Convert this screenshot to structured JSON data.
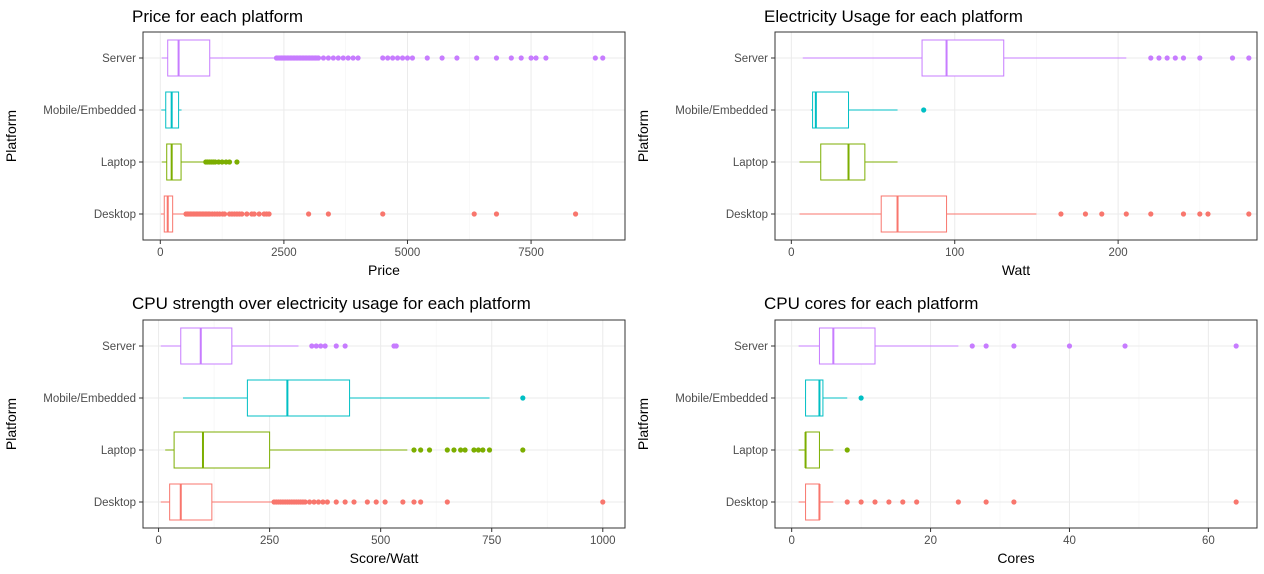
{
  "chart_data": [
    {
      "type": "boxplot",
      "orientation": "horizontal",
      "title": "Price for each platform",
      "xlabel": "Price",
      "ylabel": "Platform",
      "xlim": [
        -350,
        9400
      ],
      "xticks": [
        0,
        2500,
        5000,
        7500
      ],
      "xtick_labels": [
        "0",
        "2500",
        "5000",
        "7500"
      ],
      "categories": [
        "Desktop",
        "Laptop",
        "Mobile/Embedded",
        "Server"
      ],
      "boxes": [
        {
          "platform": "Desktop",
          "color": "#F8766D",
          "whisker_low": 10,
          "q1": 80,
          "median": 150,
          "q3": 250,
          "whisker_high": 500,
          "outliers": [
            520,
            550,
            580,
            610,
            640,
            670,
            700,
            730,
            760,
            790,
            820,
            850,
            880,
            910,
            940,
            970,
            1000,
            1050,
            1100,
            1150,
            1200,
            1260,
            1300,
            1400,
            1450,
            1500,
            1550,
            1600,
            1650,
            1750,
            1850,
            1900,
            2000,
            2100,
            2150,
            2200,
            3000,
            3400,
            4500,
            6350,
            6800,
            8400
          ]
        },
        {
          "platform": "Laptop",
          "color": "#7CAE00",
          "whisker_low": 30,
          "q1": 130,
          "median": 230,
          "q3": 420,
          "whisker_high": 880,
          "outliers": [
            920,
            950,
            990,
            1030,
            1070,
            1110,
            1180,
            1250,
            1330,
            1400,
            1550
          ]
        },
        {
          "platform": "Mobile/Embedded",
          "color": "#00BFC4",
          "whisker_low": 20,
          "q1": 110,
          "median": 230,
          "q3": 370,
          "whisker_high": 430,
          "outliers": []
        },
        {
          "platform": "Server",
          "color": "#C77CFF",
          "whisker_low": 30,
          "q1": 150,
          "median": 370,
          "q3": 1000,
          "whisker_high": 2300,
          "outliers": [
            2350,
            2380,
            2420,
            2450,
            2480,
            2510,
            2540,
            2570,
            2600,
            2630,
            2660,
            2690,
            2720,
            2750,
            2780,
            2810,
            2840,
            2870,
            2900,
            2930,
            2960,
            2990,
            3020,
            3050,
            3080,
            3110,
            3140,
            3170,
            3200,
            3300,
            3400,
            3500,
            3600,
            3700,
            3800,
            3900,
            4000,
            4500,
            4600,
            4700,
            4800,
            4900,
            5000,
            5100,
            5400,
            5700,
            6000,
            6400,
            6800,
            7100,
            7300,
            7500,
            7600,
            7800,
            8800,
            8950
          ]
        }
      ]
    },
    {
      "type": "boxplot",
      "orientation": "horizontal",
      "title": "Electricity Usage for each platform",
      "xlabel": "Watt",
      "ylabel": "Platform",
      "xlim": [
        -10,
        285
      ],
      "xticks": [
        0,
        100,
        200
      ],
      "xtick_labels": [
        "0",
        "100",
        "200"
      ],
      "categories": [
        "Desktop",
        "Laptop",
        "Mobile/Embedded",
        "Server"
      ],
      "boxes": [
        {
          "platform": "Desktop",
          "color": "#F8766D",
          "whisker_low": 5,
          "q1": 55,
          "median": 65,
          "q3": 95,
          "whisker_high": 150,
          "outliers": [
            165,
            180,
            190,
            205,
            220,
            240,
            250,
            255,
            280
          ]
        },
        {
          "platform": "Laptop",
          "color": "#7CAE00",
          "whisker_low": 5,
          "q1": 18,
          "median": 35,
          "q3": 45,
          "whisker_high": 65,
          "outliers": []
        },
        {
          "platform": "Mobile/Embedded",
          "color": "#00BFC4",
          "whisker_low": 12,
          "q1": 13,
          "median": 15,
          "q3": 35,
          "whisker_high": 65,
          "outliers": [
            81
          ]
        },
        {
          "platform": "Server",
          "color": "#C77CFF",
          "whisker_low": 7,
          "q1": 80,
          "median": 95,
          "q3": 130,
          "whisker_high": 205,
          "outliers": [
            220,
            225,
            230,
            235,
            240,
            250,
            270,
            280
          ]
        }
      ]
    },
    {
      "type": "boxplot",
      "orientation": "horizontal",
      "title": "CPU strength over electricity usage for each platform",
      "xlabel": "Score/Watt",
      "ylabel": "Platform",
      "xlim": [
        -35,
        1050
      ],
      "xticks": [
        0,
        250,
        500,
        750,
        1000
      ],
      "xtick_labels": [
        "0",
        "250",
        "500",
        "750",
        "1000"
      ],
      "categories": [
        "Desktop",
        "Laptop",
        "Mobile/Embedded",
        "Server"
      ],
      "boxes": [
        {
          "platform": "Desktop",
          "color": "#F8766D",
          "whisker_low": 5,
          "q1": 25,
          "median": 50,
          "q3": 120,
          "whisker_high": 255,
          "outliers": [
            260,
            265,
            270,
            275,
            280,
            285,
            290,
            295,
            300,
            305,
            310,
            315,
            320,
            325,
            330,
            340,
            350,
            360,
            370,
            380,
            400,
            420,
            440,
            470,
            490,
            510,
            550,
            575,
            590,
            650,
            1000
          ]
        },
        {
          "platform": "Laptop",
          "color": "#7CAE00",
          "whisker_low": 15,
          "q1": 35,
          "median": 100,
          "q3": 250,
          "whisker_high": 560,
          "outliers": [
            575,
            590,
            610,
            650,
            665,
            680,
            690,
            710,
            720,
            730,
            745,
            820
          ]
        },
        {
          "platform": "Mobile/Embedded",
          "color": "#00BFC4",
          "whisker_low": 55,
          "q1": 200,
          "median": 290,
          "q3": 430,
          "whisker_high": 745,
          "outliers": [
            820
          ]
        },
        {
          "platform": "Server",
          "color": "#C77CFF",
          "whisker_low": 5,
          "q1": 50,
          "median": 95,
          "q3": 165,
          "whisker_high": 315,
          "outliers": [
            345,
            355,
            365,
            375,
            400,
            420,
            530,
            535
          ]
        }
      ]
    },
    {
      "type": "boxplot",
      "orientation": "horizontal",
      "title": "CPU cores for each platform",
      "xlabel": "Cores",
      "ylabel": "Platform",
      "xlim": [
        -2.4,
        67
      ],
      "xticks": [
        0,
        20,
        40,
        60
      ],
      "xtick_labels": [
        "0",
        "20",
        "40",
        "60"
      ],
      "categories": [
        "Desktop",
        "Laptop",
        "Mobile/Embedded",
        "Server"
      ],
      "boxes": [
        {
          "platform": "Desktop",
          "color": "#F8766D",
          "whisker_low": 1,
          "q1": 2,
          "median": 4,
          "q3": 4,
          "whisker_high": 6,
          "outliers": [
            8,
            10,
            12,
            14,
            16,
            18,
            24,
            28,
            32,
            64
          ]
        },
        {
          "platform": "Laptop",
          "color": "#7CAE00",
          "whisker_low": 1,
          "q1": 2,
          "median": 2,
          "q3": 4,
          "whisker_high": 6,
          "outliers": [
            8
          ]
        },
        {
          "platform": "Mobile/Embedded",
          "color": "#00BFC4",
          "whisker_low": 2,
          "q1": 2,
          "median": 4,
          "q3": 4.5,
          "whisker_high": 8,
          "outliers": [
            10
          ]
        },
        {
          "platform": "Server",
          "color": "#C77CFF",
          "whisker_low": 1,
          "q1": 4,
          "median": 6,
          "q3": 12,
          "whisker_high": 24,
          "outliers": [
            26,
            28,
            32,
            40,
            48,
            64
          ]
        }
      ]
    }
  ]
}
